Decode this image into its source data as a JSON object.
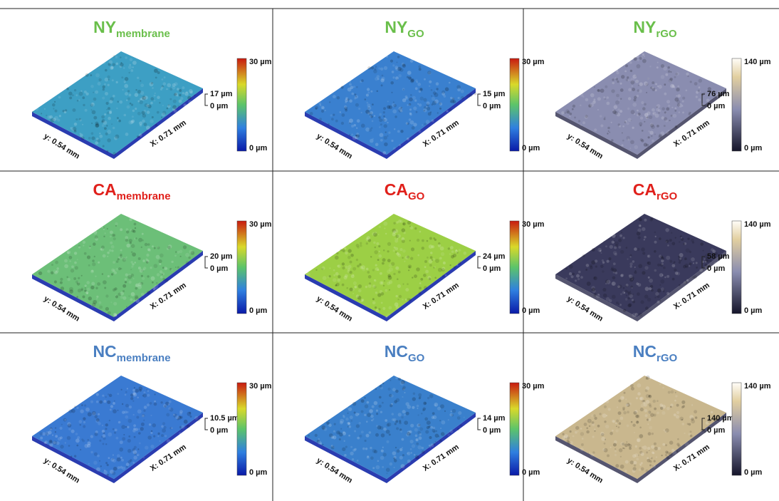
{
  "panels": [
    {
      "title": "NY",
      "subscript": "membrane",
      "title_color": "#6abf4b",
      "colormap": "jet",
      "surface_color": "#3d9fc4",
      "scale_max": "30 µm",
      "scale_min": "0 µm",
      "height_max": "17 µm",
      "height_min": "0 µm",
      "x_axis": "X: 0.71 mm",
      "y_axis": "y: 0.54 mm"
    },
    {
      "title": "NY",
      "subscript": "GO",
      "title_color": "#6abf4b",
      "colormap": "jet",
      "surface_color": "#3a80cf",
      "scale_max": "30 µm",
      "scale_min": "0 µm",
      "height_max": "15 µm",
      "height_min": "0 µm",
      "x_axis": "X: 0.71 mm",
      "y_axis": "y: 0.54 mm"
    },
    {
      "title": "NY",
      "subscript": "rGO",
      "title_color": "#6abf4b",
      "colormap": "bone",
      "surface_color": "#8a8db0",
      "scale_max": "140 µm",
      "scale_min": "0 µm",
      "height_max": "76 µm",
      "height_min": "0 µm",
      "x_axis": "X: 0.71 mm",
      "y_axis": "y: 0.54 mm"
    },
    {
      "title": "CA",
      "subscript": "membrane",
      "title_color": "#e0201b",
      "colormap": "jet",
      "surface_color": "#6cbf78",
      "scale_max": "30 µm",
      "scale_min": "0 µm",
      "height_max": "20 µm",
      "height_min": "0 µm",
      "x_axis": "X: 0.71 mm",
      "y_axis": "y: 0.54 mm"
    },
    {
      "title": "CA",
      "subscript": "GO",
      "title_color": "#e0201b",
      "colormap": "jet",
      "surface_color": "#9ccf45",
      "scale_max": "30 µm",
      "scale_min": "0 µm",
      "height_max": "24 µm",
      "height_min": "0 µm",
      "x_axis": "X: 0.71 mm",
      "y_axis": "y: 0.54 mm"
    },
    {
      "title": "CA",
      "subscript": "rGO",
      "title_color": "#e0201b",
      "colormap": "bone",
      "surface_color": "#3a3a5c",
      "scale_max": "140 µm",
      "scale_min": "0 µm",
      "height_max": "58 µm",
      "height_min": "0 µm",
      "x_axis": "X: 0.71 mm",
      "y_axis": "y: 0.54 mm"
    },
    {
      "title": "NC",
      "subscript": "membrane",
      "title_color": "#4a7fc1",
      "colormap": "jet",
      "surface_color": "#3a7ad2",
      "scale_max": "30 µm",
      "scale_min": "0 µm",
      "height_max": "10.5 µm",
      "height_min": "0 µm",
      "x_axis": "X: 0.71 mm",
      "y_axis": "y: 0.54 mm"
    },
    {
      "title": "NC",
      "subscript": "GO",
      "title_color": "#4a7fc1",
      "colormap": "jet",
      "surface_color": "#3a80cc",
      "scale_max": "30 µm",
      "scale_min": "0 µm",
      "height_max": "14 µm",
      "height_min": "0 µm",
      "x_axis": "X: 0.71 mm",
      "y_axis": "y: 0.54 mm"
    },
    {
      "title": "NC",
      "subscript": "rGO",
      "title_color": "#4a7fc1",
      "colormap": "bone",
      "surface_color": "#c9b78e",
      "scale_max": "140 µm",
      "scale_min": "0 µm",
      "height_max": "140 µm",
      "height_min": "0 µm",
      "x_axis": "X: 0.71 mm",
      "y_axis": "y: 0.54 mm"
    }
  ]
}
